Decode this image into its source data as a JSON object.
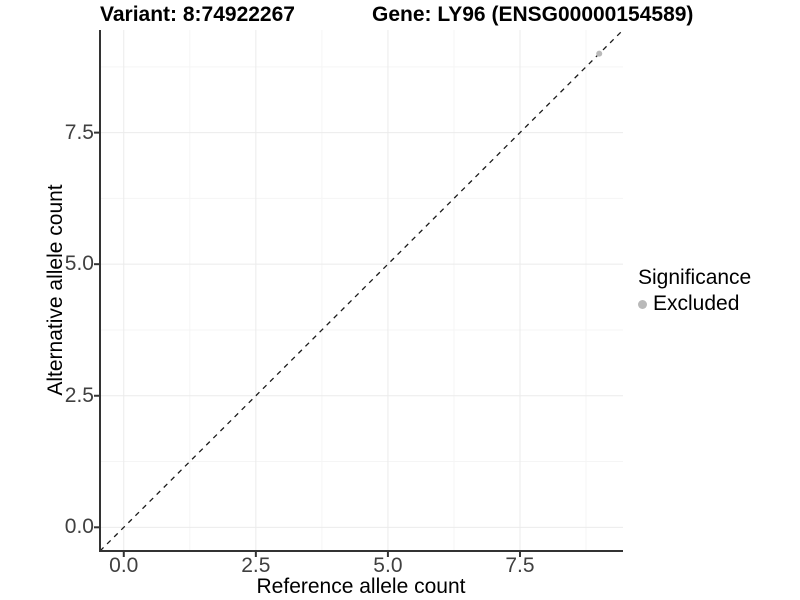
{
  "header": {
    "title_left": "Variant: 8:74922267",
    "title_right": "Gene: LY96 (ENSG00000154589)"
  },
  "chart_data": {
    "type": "scatter",
    "title": "Variant: 8:74922267   Gene: LY96 (ENSG00000154589)",
    "xlabel": "Reference allele count",
    "ylabel": "Alternative allele count",
    "xlim": [
      -0.45,
      9.45
    ],
    "ylim": [
      -0.45,
      9.45
    ],
    "x_ticks": [
      0.0,
      2.5,
      5.0,
      7.5
    ],
    "y_ticks": [
      0.0,
      2.5,
      5.0,
      7.5
    ],
    "x_tick_labels": [
      "0.0",
      "2.5",
      "5.0",
      "7.5"
    ],
    "y_tick_labels": [
      "0.0",
      "2.5",
      "5.0",
      "7.5"
    ],
    "x_minor_ticks": [
      1.25,
      3.75,
      6.25,
      8.75
    ],
    "y_minor_ticks": [
      1.25,
      3.75,
      6.25,
      8.75
    ],
    "grid": true,
    "series": [
      {
        "name": "Excluded",
        "points": [
          [
            9,
            9
          ]
        ],
        "color": "#b9b9b9",
        "marker": "circle",
        "marker_radius": 3
      }
    ],
    "reference_line": {
      "type": "identity y=x",
      "from": [
        -0.45,
        -0.45
      ],
      "to": [
        9.45,
        9.45
      ],
      "style": "dashed",
      "color": "#1a1a1a"
    },
    "legend": {
      "title": "Significance",
      "position": "right",
      "entries": [
        {
          "label": "Excluded",
          "color": "#b9b9b9",
          "marker": "circle"
        }
      ]
    }
  },
  "colors": {
    "background": "#ffffff",
    "grid_major": "#ebebeb",
    "grid_minor": "#f5f5f5",
    "axis_line": "#333333",
    "tick_mark": "#333333",
    "tick_label": "#404040",
    "point": "#b9b9b9",
    "dashed_line": "#1a1a1a"
  }
}
